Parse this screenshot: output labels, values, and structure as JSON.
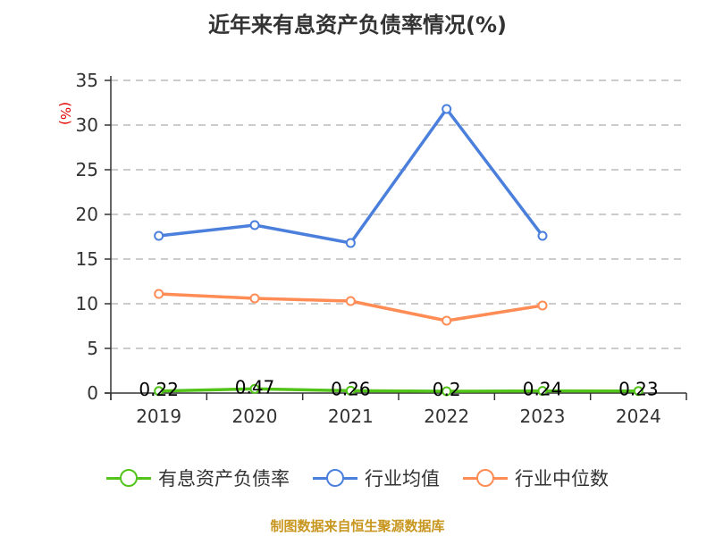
{
  "title": "近年来有息资产负债率情况(%)",
  "y_unit_label": "(%)",
  "source": "制图数据来自恒生聚源数据库",
  "legend": [
    {
      "label": "有息资产负债率",
      "color": "#52c41a"
    },
    {
      "label": "行业均值",
      "color": "#4a7fdc"
    },
    {
      "label": "行业中位数",
      "color": "#ff8c55"
    }
  ],
  "chart_data": {
    "type": "line",
    "title": "近年来有息资产负债率情况(%)",
    "xlabel": "",
    "ylabel": "(%)",
    "categories": [
      "2019",
      "2020",
      "2021",
      "2022",
      "2023",
      "2024"
    ],
    "ylim": [
      0,
      35
    ],
    "yticks": [
      0,
      5,
      10,
      15,
      20,
      25,
      30,
      35
    ],
    "grid": "horizontal dashed",
    "legend_position": "bottom",
    "series": [
      {
        "name": "有息资产负债率",
        "color": "#52c41a",
        "values": [
          0.22,
          0.47,
          0.26,
          0.2,
          0.24,
          0.23
        ],
        "labels": [
          "0.22",
          "0.47",
          "0.26",
          "0.2",
          "0.24",
          "0.23"
        ]
      },
      {
        "name": "行业均值",
        "color": "#4a7fdc",
        "values": [
          17.6,
          18.8,
          16.8,
          31.8,
          17.6,
          null
        ]
      },
      {
        "name": "行业中位数",
        "color": "#ff8c55",
        "values": [
          11.1,
          10.6,
          10.3,
          8.1,
          9.8,
          null
        ]
      }
    ]
  }
}
